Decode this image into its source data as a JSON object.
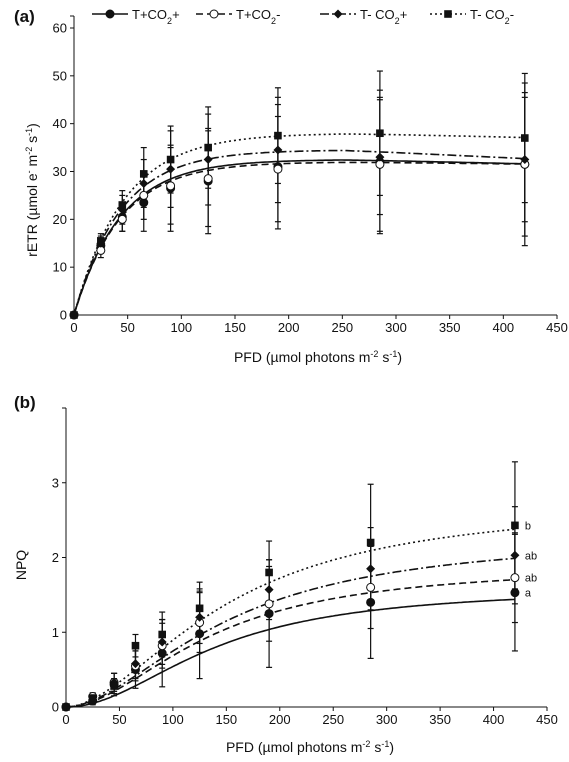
{
  "chart_data": [
    {
      "type": "line",
      "panel_label": "(a)",
      "xlabel": "PFD (µmol photons m",
      "xlabel_sup": "-2",
      "xlabel_mid": " s",
      "xlabel_sup2": "-1",
      "xlabel_end": ")",
      "ylabel": "rETR (µmol e",
      "ylabel_sup": "-",
      "ylabel_mid": " m",
      "ylabel_sup2": "-2",
      "ylabel_mid2": " s",
      "ylabel_sup3": "-1",
      "ylabel_end": ")",
      "xlim": [
        0,
        450
      ],
      "ylim": [
        0,
        60
      ],
      "xticks": [
        "0",
        "50",
        "100",
        "150",
        "200",
        "250",
        "300",
        "350",
        "400",
        "450"
      ],
      "yticks": [
        "0",
        "10",
        "20",
        "30",
        "40",
        "50",
        "60"
      ],
      "x": [
        0,
        25,
        45,
        65,
        90,
        125,
        190,
        285,
        420
      ],
      "legend_position": "top",
      "series": [
        {
          "name": "T+CO2+",
          "name_main": "T+CO",
          "name_sub": "2",
          "name_suffix": "+",
          "marker": "circle-filled",
          "dash": "solid",
          "values": [
            0,
            14.5,
            20.5,
            23.5,
            26.5,
            28,
            31,
            32,
            31.5
          ],
          "err": [
            0,
            1.5,
            3,
            6,
            9,
            11,
            13,
            15,
            17
          ],
          "fit": {
            "pm": 32.5,
            "a": 0.75
          }
        },
        {
          "name": "T+CO2-",
          "name_main": "T+CO",
          "name_sub": "2",
          "name_suffix": "-",
          "marker": "circle-open",
          "dash": "dashed",
          "values": [
            0,
            13.5,
            20,
            25,
            27,
            28.5,
            30.5,
            31.5,
            31.5
          ],
          "err": [
            0,
            1.5,
            2.5,
            5,
            8,
            10,
            11,
            14,
            15
          ],
          "fit": {
            "pm": 32.0,
            "a": 0.74
          }
        },
        {
          "name": "T- CO2+",
          "name_main": "T- CO",
          "name_sub": "2",
          "name_suffix": "+",
          "marker": "diamond-filled",
          "dash": "dashdot",
          "values": [
            0,
            15,
            22,
            27.5,
            30.5,
            32.5,
            34.5,
            33,
            32.5
          ],
          "err": [
            0,
            1.5,
            3,
            5,
            8,
            9.5,
            11,
            12,
            13
          ],
          "fit": {
            "pm": 34.5,
            "a": 0.8
          }
        },
        {
          "name": "T- CO2-",
          "name_main": "T- CO",
          "name_sub": "2",
          "name_suffix": "-",
          "marker": "square-filled",
          "dash": "dotted",
          "values": [
            0,
            15.5,
            23,
            29.5,
            32.5,
            35,
            37.5,
            38,
            37
          ],
          "err": [
            0,
            1.5,
            3,
            5.5,
            7,
            8.5,
            10,
            13,
            13.5
          ],
          "fit": {
            "pm": 38.0,
            "a": 0.82
          }
        }
      ]
    },
    {
      "type": "line",
      "panel_label": "(b)",
      "xlabel": "PFD (µmol photons m",
      "xlabel_sup": "-2",
      "xlabel_mid": " s",
      "xlabel_sup2": "-1",
      "xlabel_end": ")",
      "ylabel": "NPQ",
      "xlim": [
        0,
        450
      ],
      "ylim": [
        0,
        4
      ],
      "xticks": [
        "0",
        "50",
        "100",
        "150",
        "200",
        "250",
        "300",
        "350",
        "400",
        "450"
      ],
      "yticks": [
        "0",
        "1",
        "2",
        "3"
      ],
      "x": [
        0,
        25,
        45,
        65,
        90,
        125,
        190,
        285,
        420
      ],
      "series": [
        {
          "name": "T+CO2+",
          "marker": "circle-filled",
          "dash": "solid",
          "values": [
            0,
            0.08,
            0.3,
            0.5,
            0.72,
            0.98,
            1.25,
            1.4,
            1.53
          ],
          "err": [
            0,
            0.05,
            0.15,
            0.25,
            0.45,
            0.6,
            0.72,
            0.75,
            0.78
          ],
          "significance": "a",
          "fit": {
            "k": 140,
            "n": 2.0,
            "max": 1.6
          }
        },
        {
          "name": "T+CO2-",
          "marker": "circle-open",
          "dash": "dashed",
          "values": [
            0,
            0.14,
            0.33,
            0.55,
            0.82,
            1.13,
            1.38,
            1.6,
            1.73
          ],
          "err": [
            0,
            0.05,
            0.12,
            0.2,
            0.3,
            0.4,
            0.5,
            0.55,
            0.6
          ],
          "significance": "ab",
          "fit": {
            "k": 135,
            "n": 1.9,
            "max": 1.9
          }
        },
        {
          "name": "T- CO2+",
          "marker": "diamond-filled",
          "dash": "dashdot",
          "values": [
            0,
            0.1,
            0.33,
            0.58,
            0.87,
            1.2,
            1.57,
            1.85,
            2.03
          ],
          "err": [
            0,
            0.05,
            0.12,
            0.2,
            0.3,
            0.35,
            0.4,
            0.55,
            0.65
          ],
          "significance": "ab",
          "fit": {
            "k": 150,
            "n": 1.8,
            "max": 2.3
          }
        },
        {
          "name": "T- CO2-",
          "marker": "square-filled",
          "dash": "dotted",
          "values": [
            0,
            0.12,
            0.28,
            0.82,
            0.97,
            1.32,
            1.8,
            2.2,
            2.43
          ],
          "err": [
            0,
            0.05,
            0.1,
            0.15,
            0.3,
            0.35,
            0.42,
            0.78,
            0.85
          ],
          "significance": "b",
          "fit": {
            "k": 150,
            "n": 1.8,
            "max": 2.75
          }
        }
      ]
    }
  ]
}
